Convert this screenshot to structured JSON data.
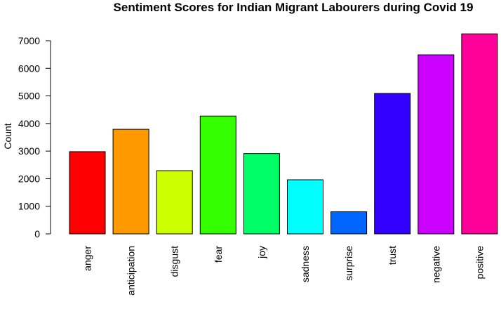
{
  "chart_data": {
    "type": "bar",
    "title": "Sentiment Scores for Indian Migrant Labourers during Covid 19",
    "xlabel": "",
    "ylabel": "Count",
    "categories": [
      "anger",
      "anticipation",
      "disgust",
      "fear",
      "joy",
      "sadness",
      "surprise",
      "trust",
      "negative",
      "positive"
    ],
    "values": [
      2980,
      3790,
      2290,
      4270,
      2910,
      1960,
      800,
      5090,
      6490,
      7250
    ],
    "colors": [
      "#FF0000",
      "#FF9900",
      "#CCFF00",
      "#33FF00",
      "#00FF66",
      "#00FFFF",
      "#0066FF",
      "#3300FF",
      "#CC00FF",
      "#FF0099"
    ],
    "ylim": [
      0,
      7300
    ],
    "yticks": [
      0,
      1000,
      2000,
      3000,
      4000,
      5000,
      6000,
      7000
    ],
    "grid": false
  }
}
